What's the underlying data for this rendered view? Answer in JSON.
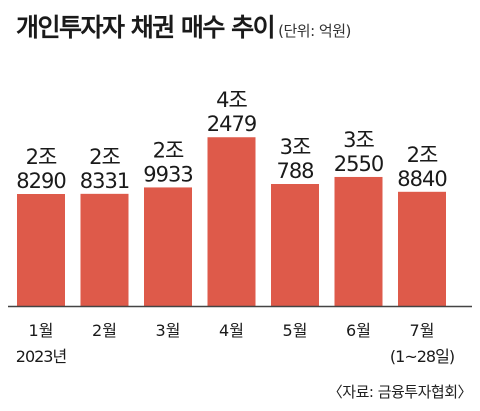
{
  "title": "개인투자자 채권 매수 추이",
  "unit": "(단위: 억원)",
  "source": "〈자료: 금융투자협회〉",
  "colors": {
    "bar": "#de5a4a",
    "axis": "#444444",
    "text": "#1a1a1a"
  },
  "chart_data": {
    "type": "bar",
    "categories": [
      "1월",
      "2월",
      "3월",
      "4월",
      "5월",
      "6월",
      "7월"
    ],
    "category_sublabels": [
      "2023년",
      "",
      "",
      "",
      "",
      "",
      "(1~28일)"
    ],
    "values": [
      28290,
      28331,
      29933,
      42479,
      30788,
      32550,
      28840
    ],
    "value_labels": [
      [
        "2조",
        "8290"
      ],
      [
        "2조",
        "8331"
      ],
      [
        "2조",
        "9933"
      ],
      [
        "4조",
        "2479"
      ],
      [
        "3조",
        "788"
      ],
      [
        "3조",
        "2550"
      ],
      [
        "2조",
        "8840"
      ]
    ],
    "title": "개인투자자 채권 매수 추이",
    "ylabel": "억원",
    "grid": false,
    "legend": "none"
  }
}
